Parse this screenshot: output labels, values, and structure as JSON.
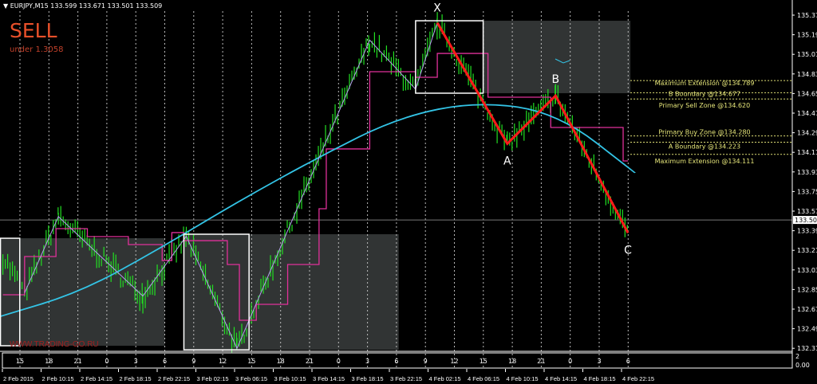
{
  "header": {
    "symbol": "EURJPY,M15",
    "open": "133.599",
    "high": "133.671",
    "low": "133.501",
    "close": "133.509"
  },
  "signal": {
    "label": "SELL",
    "sub": "under 1.3058",
    "color": "#e8502a"
  },
  "watermark": "WWW.TRADING-GO.RU",
  "colors": {
    "price": "#22e022",
    "zigzag": "#b89cf0",
    "pattern": "#ff1a1a",
    "ma": "#33c4e6",
    "envelope": "#e0309a",
    "box": "#3a3d3d",
    "fib": "#e6e67a"
  },
  "chart_data": {
    "type": "line",
    "symbol": "EURJPY",
    "timeframe": "M15",
    "ylim": [
      132.315,
      135.375
    ],
    "yticks": [
      "135.375",
      "135.195",
      "135.015",
      "134.835",
      "134.655",
      "134.475",
      "134.295",
      "134.115",
      "133.935",
      "133.755",
      "133.575",
      "133.395",
      "133.215",
      "133.035",
      "132.855",
      "132.675",
      "132.495",
      "132.315"
    ],
    "current_price": "133.509",
    "xticks": [
      "2 Feb 2015",
      "2 Feb 10:15",
      "2 Feb 14:15",
      "2 Feb 18:15",
      "2 Feb 22:15",
      "3 Feb 02:15",
      "3 Feb 06:15",
      "3 Feb 10:15",
      "3 Feb 14:15",
      "3 Feb 18:15",
      "3 Feb 22:15",
      "4 Feb 02:15",
      "4 Feb 06:15",
      "4 Feb 10:15",
      "4 Feb 14:15",
      "4 Feb 18:15",
      "4 Feb 22:15"
    ],
    "hour_ticks": [
      "15",
      "18",
      "21",
      "0",
      "3",
      "6",
      "9",
      "12",
      "15",
      "18",
      "21",
      "0",
      "3",
      "6",
      "9",
      "12",
      "15",
      "18",
      "21",
      "0",
      "3",
      "6"
    ],
    "subwindow_labels": [
      "2",
      "0.00"
    ],
    "swings": [
      [
        "2015-02-02 06:15",
        133.17
      ],
      [
        "2015-02-02 08:30",
        132.84
      ],
      [
        "2015-02-02 12:00",
        133.54
      ],
      [
        "2015-02-02 20:45",
        132.81
      ],
      [
        "2015-02-03 01:15",
        133.36
      ],
      [
        "2015-02-03 06:30",
        132.33
      ],
      [
        "2015-02-03 20:15",
        135.16
      ],
      [
        "2015-02-04 01:00",
        134.71
      ],
      [
        "2015-02-04 03:15",
        135.32
      ],
      [
        "2015-02-04 10:30",
        134.21
      ],
      [
        "2015-02-04 15:30",
        134.65
      ],
      [
        "2015-02-04 23:00",
        133.39
      ]
    ],
    "pattern": [
      {
        "label": "X",
        "time": "2015-02-04 03:15",
        "price": 135.32
      },
      {
        "label": "A",
        "time": "2015-02-04 10:30",
        "price": 134.21
      },
      {
        "label": "B",
        "time": "2015-02-04 15:30",
        "price": 134.65
      },
      {
        "label": "C",
        "time": "2015-02-04 23:00",
        "price": 133.39
      }
    ],
    "ma": [
      [
        "2015-02-02 06:00",
        132.624
      ],
      [
        "2015-02-02 14:15",
        132.844
      ],
      [
        "2015-02-02 22:30",
        133.246
      ],
      [
        "2015-02-03 06:45",
        133.685
      ],
      [
        "2015-02-03 15:00",
        134.088
      ],
      [
        "2015-02-03 23:15",
        134.453
      ],
      [
        "2015-02-04 07:30",
        134.599
      ],
      [
        "2015-02-04 15:45",
        134.49
      ],
      [
        "2015-02-04 23:45",
        133.941
      ]
    ],
    "envelope_steps": [
      [
        "2015-02-02 06:15",
        132.822
      ],
      [
        "2015-02-02 08:30",
        133.173
      ],
      [
        "2015-02-02 11:45",
        133.429
      ],
      [
        "2015-02-02 15:00",
        133.356
      ],
      [
        "2015-02-02 19:15",
        133.283
      ],
      [
        "2015-02-02 22:45",
        133.137
      ],
      [
        "2015-02-02 23:45",
        133.393
      ],
      [
        "2015-02-03 01:00",
        133.319
      ],
      [
        "2015-02-03 05:30",
        133.1
      ],
      [
        "2015-02-03 06:45",
        132.588
      ],
      [
        "2015-02-03 08:30",
        132.734
      ],
      [
        "2015-02-03 11:45",
        133.1
      ],
      [
        "2015-02-03 15:00",
        133.612
      ],
      [
        "2015-02-03 15:45",
        134.161
      ],
      [
        "2015-02-03 20:15",
        134.87
      ],
      [
        "2015-02-04 01:00",
        134.819
      ],
      [
        "2015-02-04 03:15",
        135.038
      ],
      [
        "2015-02-04 08:30",
        134.636
      ],
      [
        "2015-02-04 15:00",
        134.358
      ],
      [
        "2015-02-04 22:30",
        134.051
      ],
      [
        "2015-02-04 23:00",
        134.051
      ]
    ],
    "zones": [
      {
        "kind": "gray",
        "from": "2015-02-02 06:00",
        "to": "2015-02-02 23:00",
        "top": 133.341,
        "bottom": 132.354
      },
      {
        "kind": "gray",
        "from": "2015-02-03 01:00",
        "to": "2015-02-03 23:15",
        "top": 133.378,
        "bottom": 132.317
      },
      {
        "kind": "gray",
        "from": "2015-02-04 08:00",
        "to": "2015-02-04 23:15",
        "top": 135.338,
        "bottom": 134.673
      },
      {
        "kind": "white",
        "from": "2015-02-02 06:00",
        "to": "2015-02-02 08:00",
        "top": 133.341,
        "bottom": 132.354
      },
      {
        "kind": "white",
        "from": "2015-02-03 01:00",
        "to": "2015-02-03 07:45",
        "top": 133.378,
        "bottom": 132.317
      },
      {
        "kind": "white",
        "from": "2015-02-04 01:00",
        "to": "2015-02-04 08:00",
        "top": 135.338,
        "bottom": 134.673
      }
    ],
    "levels": [
      {
        "label": "Maximum Extension @134.789",
        "price": 134.789
      },
      {
        "label": "B Boundary @134.677",
        "price": 134.677
      },
      {
        "label": "Primary Sell Zone @134.620",
        "price": 134.62
      },
      {
        "label": "Primary Buy Zone @134.280",
        "price": 134.28
      },
      {
        "label": "A Boundary @134.223",
        "price": 134.223
      },
      {
        "label": "Maximum Extension @134.111",
        "price": 134.111
      }
    ]
  }
}
